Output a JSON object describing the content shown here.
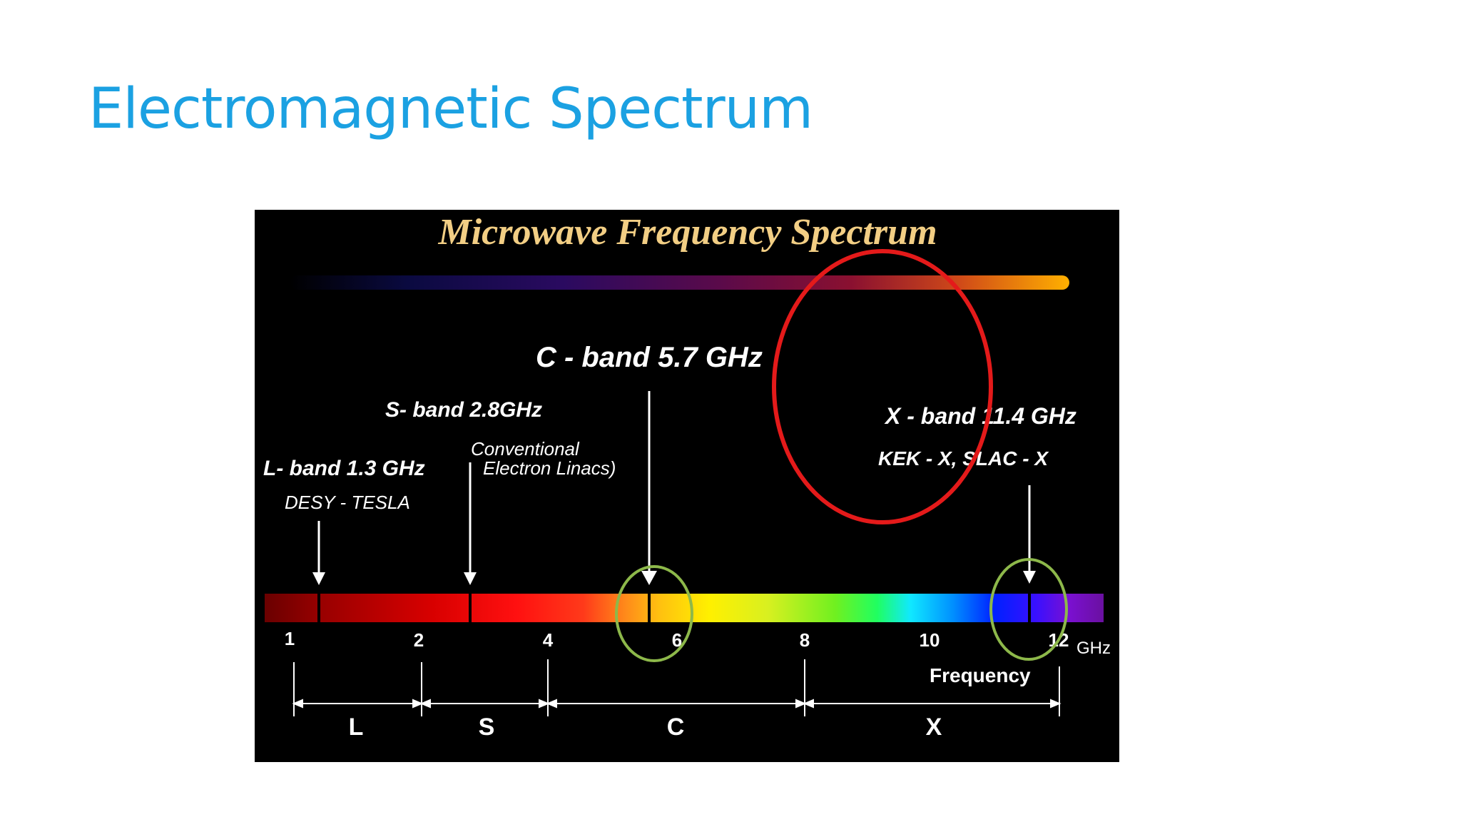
{
  "slide": {
    "title": "Electromagnetic Spectrum"
  },
  "figure": {
    "title": "Microwave Frequency Spectrum",
    "labels": {
      "c_band": "C - band  5.7 GHz",
      "s_band": "S- band 2.8GHz",
      "s_note_line1": "Conventional",
      "s_note_line2": "Electron Linacs)",
      "l_band": "L- band 1.3 GHz",
      "l_note": "DESY - TESLA",
      "x_band": "X - band 11.4 GHz",
      "x_note": "KEK - X, SLAC - X"
    },
    "ticks": [
      "1",
      "2",
      "4",
      "6",
      "8",
      "10",
      "12"
    ],
    "unit": "GHz",
    "axis_label": "Frequency",
    "bands": [
      "L",
      "S",
      "C",
      "X"
    ],
    "colors": {
      "title_gold": "#F2CE84",
      "highlight_red": "#E41A1A",
      "highlight_green": "#8DB84A",
      "slide_title_blue": "#1BA1E2"
    }
  }
}
